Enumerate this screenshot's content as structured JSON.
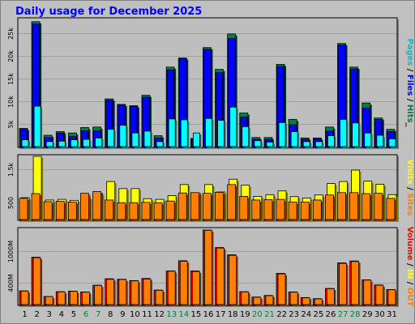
{
  "title": "Daily usage for December 2025",
  "colors": {
    "background": "#c0c0c0",
    "panel": "#bebebe",
    "title": "#0000ff",
    "hits": "#008040",
    "files": "#0000ff",
    "pages": "#00ffff",
    "visits": "#ffff00",
    "sites": "#ff8000",
    "in": "#ffff00",
    "out": "#ff8000",
    "volume": "#ff0000",
    "weekend_label": "#008040"
  },
  "chart_data": [
    {
      "type": "bar",
      "panel": "hits",
      "side_label_parts": [
        {
          "text": "Pages",
          "color": "#00c0c0"
        },
        {
          "text": " / ",
          "color": "#000000"
        },
        {
          "text": "Files",
          "color": "#0000ff"
        },
        {
          "text": " / ",
          "color": "#000000"
        },
        {
          "text": "Hits",
          "color": "#008040"
        },
        {
          "text": "_",
          "color": "#000000"
        }
      ],
      "ylim": [
        0,
        28000
      ],
      "ytick_values": [
        5000,
        10000,
        15000,
        20000,
        25000
      ],
      "ytick_labels": [
        "5k",
        "10k",
        "15k",
        "20k",
        "25k"
      ],
      "categories": [
        "1",
        "2",
        "3",
        "4",
        "5",
        "6",
        "7",
        "8",
        "9",
        "10",
        "11",
        "12",
        "13",
        "14",
        "15",
        "16",
        "17",
        "18",
        "19",
        "20",
        "21",
        "22",
        "23",
        "24",
        "25",
        "26",
        "27",
        "28",
        "29",
        "30",
        "31"
      ],
      "series": [
        {
          "name": "Hits",
          "values": [
            4000,
            27500,
            2500,
            3300,
            3000,
            4200,
            4300,
            10500,
            9300,
            9000,
            11300,
            2400,
            17500,
            19500,
            1800,
            21800,
            17000,
            24800,
            7400,
            2000,
            2000,
            18100,
            6000,
            1900,
            1900,
            4300,
            22700,
            17500,
            9600,
            6300,
            3800
          ]
        },
        {
          "name": "Files",
          "values": [
            3800,
            27000,
            2000,
            3000,
            2200,
            3500,
            3500,
            10200,
            9100,
            8900,
            10900,
            1900,
            16900,
            19400,
            1700,
            21400,
            16300,
            23800,
            6500,
            1600,
            1600,
            17700,
            4800,
            1600,
            1700,
            3400,
            22400,
            17100,
            8500,
            6000,
            3300
          ]
        },
        {
          "name": "Pages",
          "values": [
            1500,
            8900,
            1100,
            1200,
            1500,
            1600,
            1900,
            3800,
            4700,
            3000,
            3400,
            1100,
            6100,
            5900,
            3000,
            6200,
            5800,
            8700,
            4400,
            1300,
            1000,
            5300,
            3300,
            1100,
            1100,
            2400,
            6000,
            5200,
            3000,
            2500,
            1700
          ]
        }
      ]
    },
    {
      "type": "bar",
      "panel": "visits",
      "side_label_parts": [
        {
          "text": "Visits",
          "color": "#ffff00"
        },
        {
          "text": " / ",
          "color": "#000000"
        },
        {
          "text": "Sites",
          "color": "#ff8000"
        }
      ],
      "ylim": [
        0,
        1880
      ],
      "ytick_values": [
        500,
        1500
      ],
      "ytick_labels": [
        "500",
        "1.5k"
      ],
      "series": [
        {
          "name": "Visits",
          "values": [
            650,
            1880,
            580,
            600,
            570,
            650,
            780,
            1130,
            920,
            920,
            620,
            600,
            710,
            1040,
            780,
            1040,
            820,
            1200,
            1020,
            690,
            740,
            850,
            680,
            640,
            730,
            1070,
            1130,
            1470,
            1140,
            1050,
            740
          ]
        },
        {
          "name": "Sites",
          "values": [
            630,
            770,
            530,
            540,
            520,
            780,
            830,
            580,
            500,
            500,
            510,
            500,
            550,
            790,
            800,
            780,
            810,
            1040,
            690,
            580,
            590,
            600,
            520,
            520,
            580,
            730,
            800,
            800,
            770,
            780,
            630
          ]
        }
      ]
    },
    {
      "type": "bar",
      "panel": "volume",
      "side_label_parts": [
        {
          "text": "Volume",
          "color": "#ff0000"
        },
        {
          "text": " / ",
          "color": "#000000"
        },
        {
          "text": "IN",
          "color": "#ffff00"
        },
        {
          "text": " / ",
          "color": "#000000"
        },
        {
          "text": "OUT",
          "color": "#ff8000"
        }
      ],
      "ylim": [
        0,
        1400
      ],
      "ytick_values": [
        400,
        1000
      ],
      "ytick_labels": [
        "400M",
        "1000M"
      ],
      "series": [
        {
          "name": "Volume",
          "values": [
            255,
            880,
            150,
            240,
            250,
            235,
            360,
            480,
            470,
            445,
            485,
            270,
            625,
            815,
            625,
            1385,
            1060,
            925,
            240,
            140,
            170,
            580,
            235,
            130,
            110,
            300,
            775,
            810,
            460,
            365,
            280
          ]
        },
        {
          "name": "OUT",
          "values": [
            250,
            870,
            148,
            235,
            245,
            230,
            355,
            470,
            465,
            440,
            475,
            265,
            620,
            805,
            615,
            1380,
            1050,
            915,
            235,
            135,
            165,
            570,
            230,
            125,
            105,
            295,
            765,
            800,
            455,
            360,
            275
          ]
        }
      ]
    }
  ]
}
